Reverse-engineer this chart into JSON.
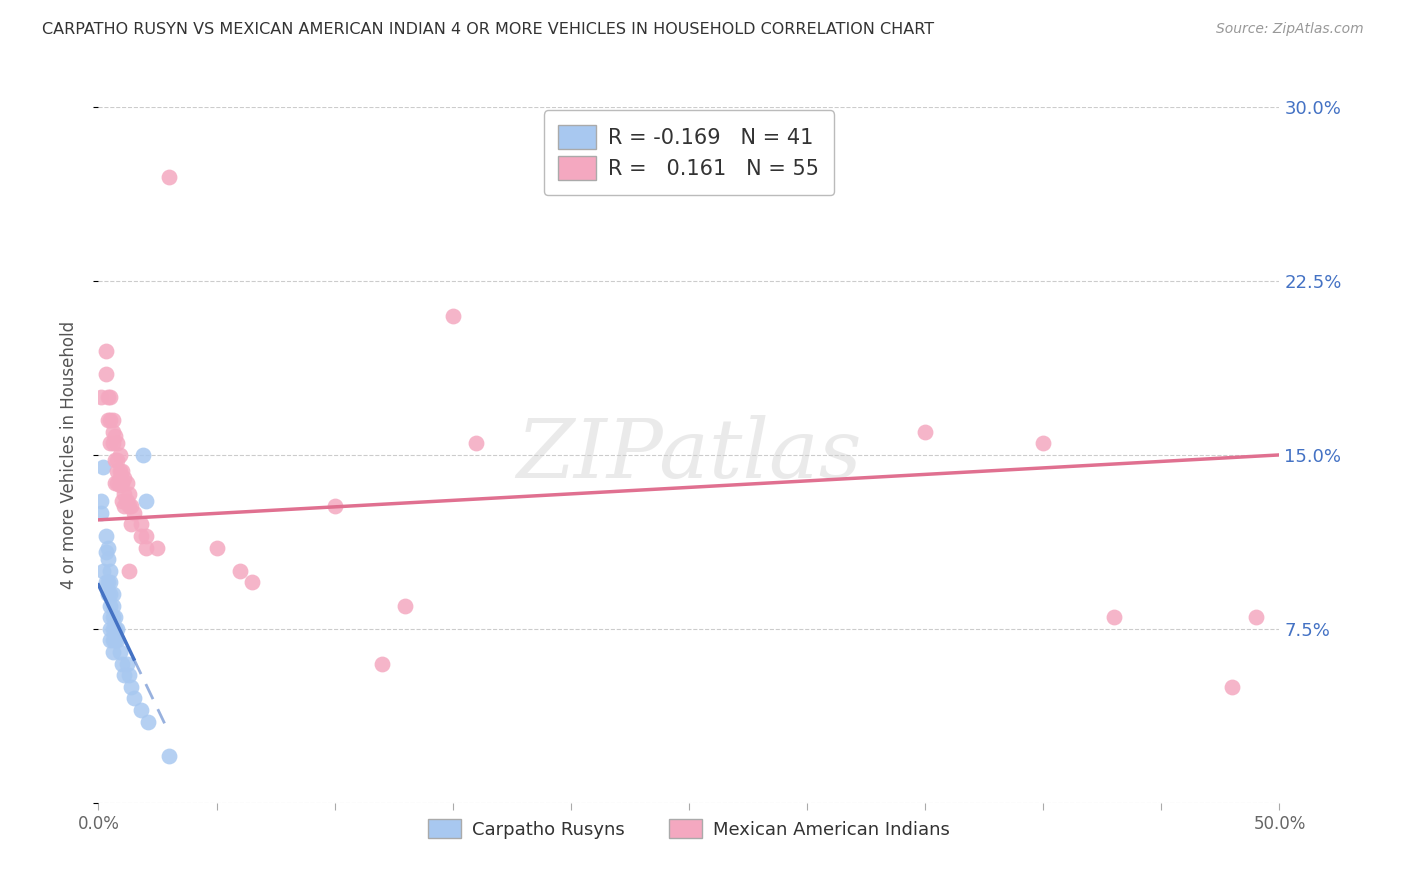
{
  "title": "CARPATHO RUSYN VS MEXICAN AMERICAN INDIAN 4 OR MORE VEHICLES IN HOUSEHOLD CORRELATION CHART",
  "source": "Source: ZipAtlas.com",
  "ylabel": "4 or more Vehicles in Household",
  "xlim": [
    0.0,
    0.5
  ],
  "ylim": [
    0.0,
    0.3
  ],
  "xticks": [
    0.0,
    0.05,
    0.1,
    0.15,
    0.2,
    0.25,
    0.3,
    0.35,
    0.4,
    0.45,
    0.5
  ],
  "xticklabels": [
    "0.0%",
    "",
    "",
    "",
    "",
    "",
    "",
    "",
    "",
    "",
    "50.0%"
  ],
  "yticks": [
    0.0,
    0.075,
    0.15,
    0.225,
    0.3
  ],
  "yticklabels": [
    "",
    "7.5%",
    "15.0%",
    "22.5%",
    "30.0%"
  ],
  "blue_r": -0.169,
  "blue_n": 41,
  "pink_r": 0.161,
  "pink_n": 55,
  "blue_label": "Carpatho Rusyns",
  "pink_label": "Mexican American Indians",
  "blue_color": "#A8C8F0",
  "pink_color": "#F4A8C0",
  "blue_line_color": "#4472C4",
  "pink_line_color": "#E07090",
  "blue_scatter": [
    [
      0.001,
      0.13
    ],
    [
      0.001,
      0.125
    ],
    [
      0.002,
      0.145
    ],
    [
      0.002,
      0.1
    ],
    [
      0.003,
      0.115
    ],
    [
      0.003,
      0.108
    ],
    [
      0.003,
      0.095
    ],
    [
      0.004,
      0.11
    ],
    [
      0.004,
      0.105
    ],
    [
      0.004,
      0.095
    ],
    [
      0.004,
      0.09
    ],
    [
      0.005,
      0.1
    ],
    [
      0.005,
      0.095
    ],
    [
      0.005,
      0.09
    ],
    [
      0.005,
      0.085
    ],
    [
      0.005,
      0.08
    ],
    [
      0.005,
      0.075
    ],
    [
      0.005,
      0.07
    ],
    [
      0.006,
      0.09
    ],
    [
      0.006,
      0.085
    ],
    [
      0.006,
      0.08
    ],
    [
      0.006,
      0.075
    ],
    [
      0.006,
      0.07
    ],
    [
      0.006,
      0.065
    ],
    [
      0.007,
      0.08
    ],
    [
      0.007,
      0.075
    ],
    [
      0.007,
      0.07
    ],
    [
      0.008,
      0.075
    ],
    [
      0.008,
      0.07
    ],
    [
      0.009,
      0.065
    ],
    [
      0.01,
      0.06
    ],
    [
      0.011,
      0.055
    ],
    [
      0.012,
      0.06
    ],
    [
      0.013,
      0.055
    ],
    [
      0.014,
      0.05
    ],
    [
      0.015,
      0.045
    ],
    [
      0.018,
      0.04
    ],
    [
      0.019,
      0.15
    ],
    [
      0.02,
      0.13
    ],
    [
      0.021,
      0.035
    ],
    [
      0.03,
      0.02
    ]
  ],
  "pink_scatter": [
    [
      0.001,
      0.175
    ],
    [
      0.003,
      0.195
    ],
    [
      0.003,
      0.185
    ],
    [
      0.004,
      0.175
    ],
    [
      0.004,
      0.165
    ],
    [
      0.005,
      0.175
    ],
    [
      0.005,
      0.165
    ],
    [
      0.005,
      0.155
    ],
    [
      0.006,
      0.165
    ],
    [
      0.006,
      0.16
    ],
    [
      0.006,
      0.155
    ],
    [
      0.007,
      0.158
    ],
    [
      0.007,
      0.148
    ],
    [
      0.007,
      0.138
    ],
    [
      0.008,
      0.155
    ],
    [
      0.008,
      0.148
    ],
    [
      0.008,
      0.143
    ],
    [
      0.008,
      0.138
    ],
    [
      0.009,
      0.15
    ],
    [
      0.009,
      0.143
    ],
    [
      0.009,
      0.14
    ],
    [
      0.009,
      0.137
    ],
    [
      0.01,
      0.143
    ],
    [
      0.01,
      0.138
    ],
    [
      0.01,
      0.13
    ],
    [
      0.011,
      0.14
    ],
    [
      0.011,
      0.133
    ],
    [
      0.011,
      0.128
    ],
    [
      0.012,
      0.138
    ],
    [
      0.012,
      0.13
    ],
    [
      0.013,
      0.133
    ],
    [
      0.013,
      0.128
    ],
    [
      0.013,
      0.1
    ],
    [
      0.014,
      0.128
    ],
    [
      0.014,
      0.12
    ],
    [
      0.015,
      0.125
    ],
    [
      0.018,
      0.12
    ],
    [
      0.018,
      0.115
    ],
    [
      0.02,
      0.115
    ],
    [
      0.02,
      0.11
    ],
    [
      0.025,
      0.11
    ],
    [
      0.03,
      0.27
    ],
    [
      0.05,
      0.11
    ],
    [
      0.06,
      0.1
    ],
    [
      0.065,
      0.095
    ],
    [
      0.1,
      0.128
    ],
    [
      0.12,
      0.06
    ],
    [
      0.13,
      0.085
    ],
    [
      0.15,
      0.21
    ],
    [
      0.16,
      0.155
    ],
    [
      0.35,
      0.16
    ],
    [
      0.4,
      0.155
    ],
    [
      0.43,
      0.08
    ],
    [
      0.48,
      0.05
    ],
    [
      0.49,
      0.08
    ]
  ],
  "watermark_text": "ZIPatlas",
  "background_color": "#FFFFFF",
  "grid_color": "#CCCCCC",
  "title_color": "#333333",
  "right_tick_color": "#4472C4"
}
